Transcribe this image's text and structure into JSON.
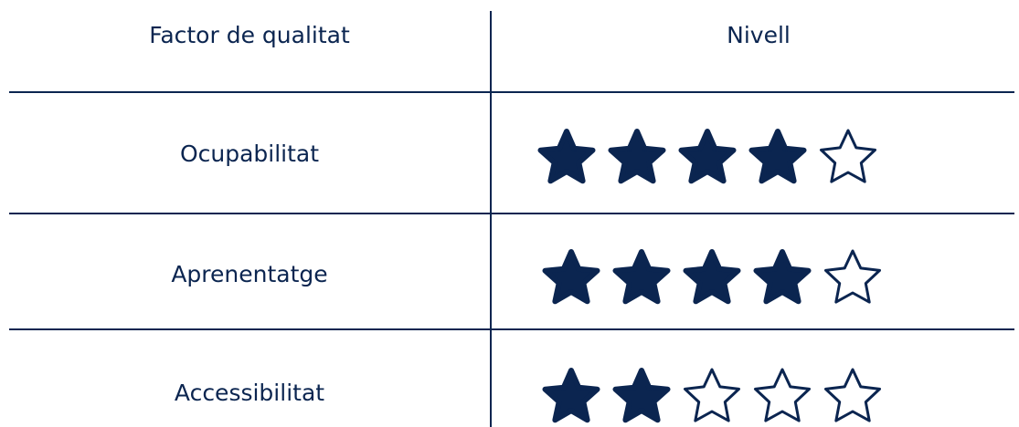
{
  "table": {
    "headers": [
      "Factor de qualitat",
      "Nivell"
    ],
    "max": 5,
    "rows": [
      {
        "label": "Ocupabilitat",
        "rating": 4
      },
      {
        "label": "Aprenentatge",
        "rating": 4
      },
      {
        "label": "Accessibilitat",
        "rating": 2
      }
    ]
  }
}
